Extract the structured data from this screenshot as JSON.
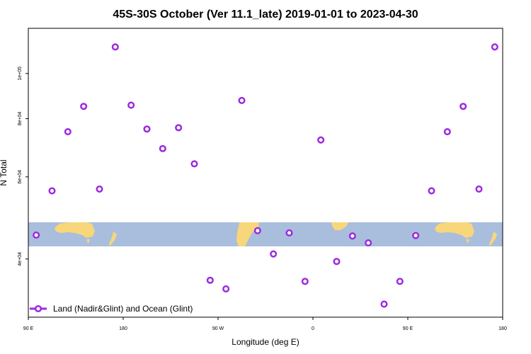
{
  "chart_data": {
    "type": "scatter",
    "title": "45S-30S October (Ver 11.1_late)   2019-01-01 to 2023-04-30",
    "xlabel": "Longitude (deg E)",
    "ylabel": "N Total",
    "x_tick_labels": [
      "90 E",
      "180",
      "90 W",
      "0",
      "90 E",
      "180"
    ],
    "x_ticks": [
      90,
      180,
      270,
      360,
      450,
      540
    ],
    "xlim": [
      90,
      540
    ],
    "y_scale": "log",
    "y_tick_labels": [
      "4e+04",
      "6e+04",
      "8e+04",
      "1e+05"
    ],
    "y_ticks": [
      40000,
      60000,
      80000,
      100000
    ],
    "ylim": [
      30000,
      125000
    ],
    "legend": {
      "position": "bottom-left"
    },
    "grid": false,
    "background": "world map strip (ocean and land)",
    "colors": {
      "marker": "#9b2be0",
      "ocean": "#a9bedc",
      "land": "#f8d67a"
    },
    "series": [
      {
        "name": "Land (Nadir&Glint) and Ocean (Glint)",
        "x": [
          97.5,
          112.5,
          127.5,
          142.5,
          157.5,
          172.5,
          187.5,
          202.5,
          217.5,
          232.5,
          247.5,
          262.5,
          277.5,
          292.5,
          307.5,
          322.5,
          337.5,
          352.5,
          367.5,
          382.5,
          397.5,
          412.5,
          427.5,
          442.5,
          457.5,
          472.5,
          487.5,
          502.5,
          517.5,
          532.5
        ],
        "y": [
          45000,
          56000,
          75000,
          85000,
          56500,
          114000,
          85500,
          76000,
          69000,
          76500,
          64000,
          36000,
          34500,
          87500,
          46000,
          41000,
          45500,
          35800,
          72000,
          39500,
          44800,
          43300,
          32000,
          35800,
          44900,
          56000,
          75000,
          85000,
          56500,
          114000
        ]
      }
    ]
  }
}
